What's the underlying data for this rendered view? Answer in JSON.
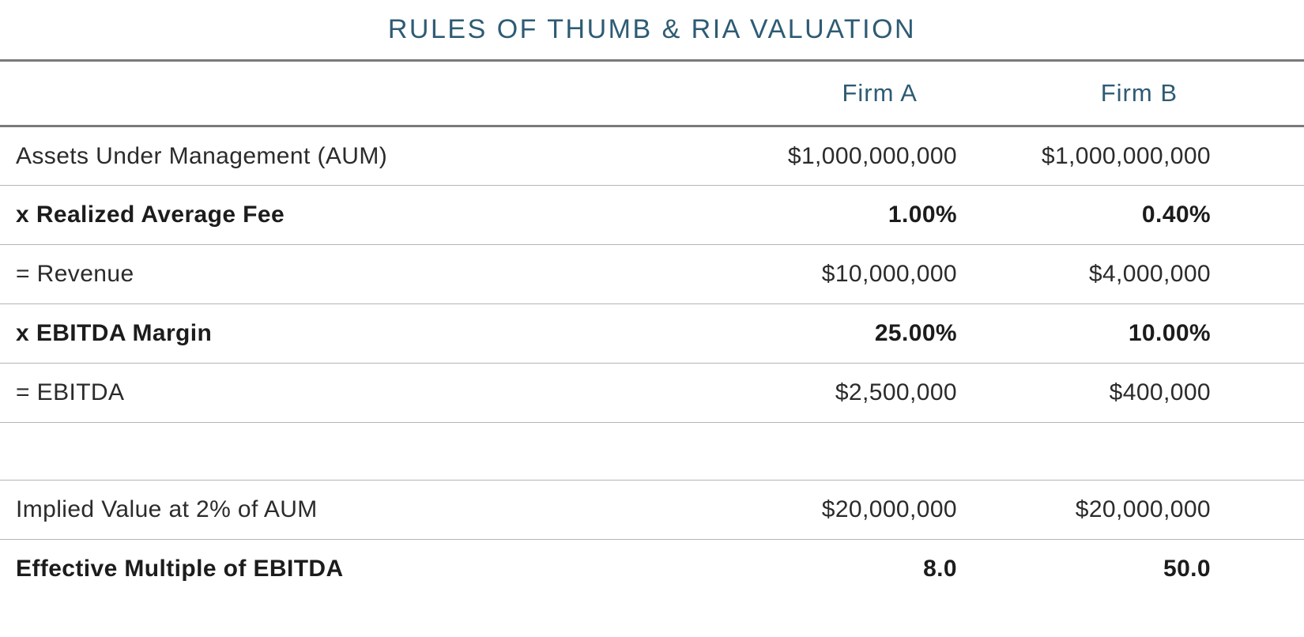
{
  "chart_data": {
    "type": "table",
    "title": "RULES OF THUMB & RIA VALUATION",
    "columns": [
      "",
      "Firm A",
      "Firm B"
    ],
    "rows": [
      {
        "label": "Assets Under Management (AUM)",
        "firm_a": "$1,000,000,000",
        "firm_b": "$1,000,000,000",
        "bold": false
      },
      {
        "label": "x Realized Average Fee",
        "firm_a": "1.00%",
        "firm_b": "0.40%",
        "bold": true
      },
      {
        "label": "= Revenue",
        "firm_a": "$10,000,000",
        "firm_b": "$4,000,000",
        "bold": false
      },
      {
        "label": "x EBITDA Margin",
        "firm_a": "25.00%",
        "firm_b": "10.00%",
        "bold": true
      },
      {
        "label": "= EBITDA",
        "firm_a": "$2,500,000",
        "firm_b": "$400,000",
        "bold": false
      },
      {
        "label": "",
        "firm_a": "",
        "firm_b": "",
        "bold": false
      },
      {
        "label": "Implied Value at 2% of AUM",
        "firm_a": "$20,000,000",
        "firm_b": "$20,000,000",
        "bold": false
      },
      {
        "label": "Effective Multiple of EBITDA",
        "firm_a": "8.0",
        "firm_b": "50.0",
        "bold": true
      }
    ]
  },
  "colors": {
    "accent": "#2e5b74",
    "body_text": "#2b2b2b",
    "rule_heavy": "#7a7a7a",
    "rule_light": "#b5b5b5"
  }
}
